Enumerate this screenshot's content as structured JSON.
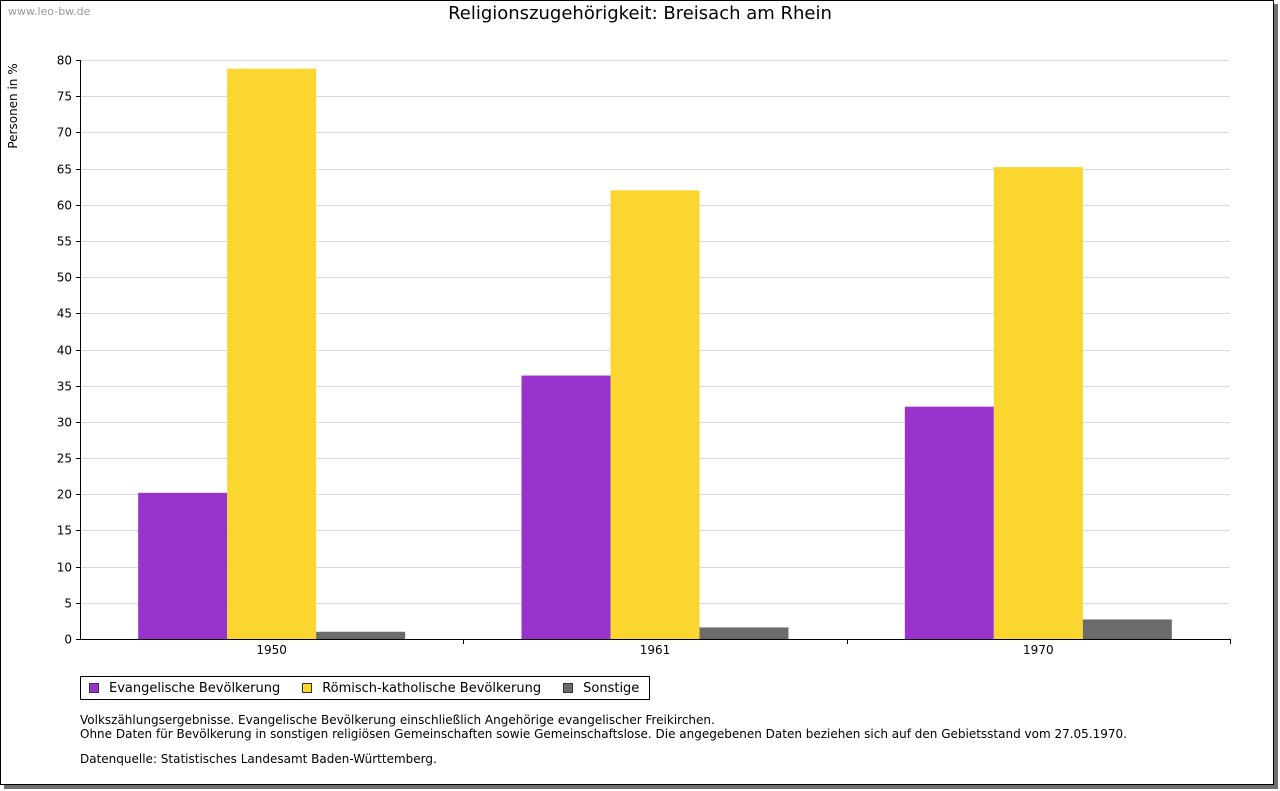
{
  "watermark": "www.leo-bw.de",
  "chart_data": {
    "type": "bar",
    "title": "Religionszugehörigkeit: Breisach am Rhein",
    "xlabel": "",
    "ylabel": "Personen in %",
    "ylim": [
      0,
      80
    ],
    "ytick_step": 5,
    "grid": true,
    "legend_position": "bottom-left",
    "categories": [
      "1950",
      "1961",
      "1970"
    ],
    "series": [
      {
        "name": "Evangelische Bevölkerung",
        "color": "#9933cc",
        "values": [
          20.2,
          36.4,
          32.1
        ]
      },
      {
        "name": "Römisch-katholische Bevölkerung",
        "color": "#fcd630",
        "values": [
          78.8,
          62.0,
          65.2
        ]
      },
      {
        "name": "Sonstige",
        "color": "#6b6b6b",
        "values": [
          1.0,
          1.6,
          2.7
        ]
      }
    ]
  },
  "notes": [
    "Volkszählungsergebnisse. Evangelische Bevölkerung einschließlich Angehörige evangelischer Freikirchen.",
    "Ohne Daten für Bevölkerung in sonstigen religiösen Gemeinschaften sowie Gemeinschaftslose. Die angegebenen Daten beziehen sich auf den Gebietsstand vom 27.05.1970."
  ],
  "source": "Datenquelle: Statistisches Landesamt Baden-Württemberg."
}
